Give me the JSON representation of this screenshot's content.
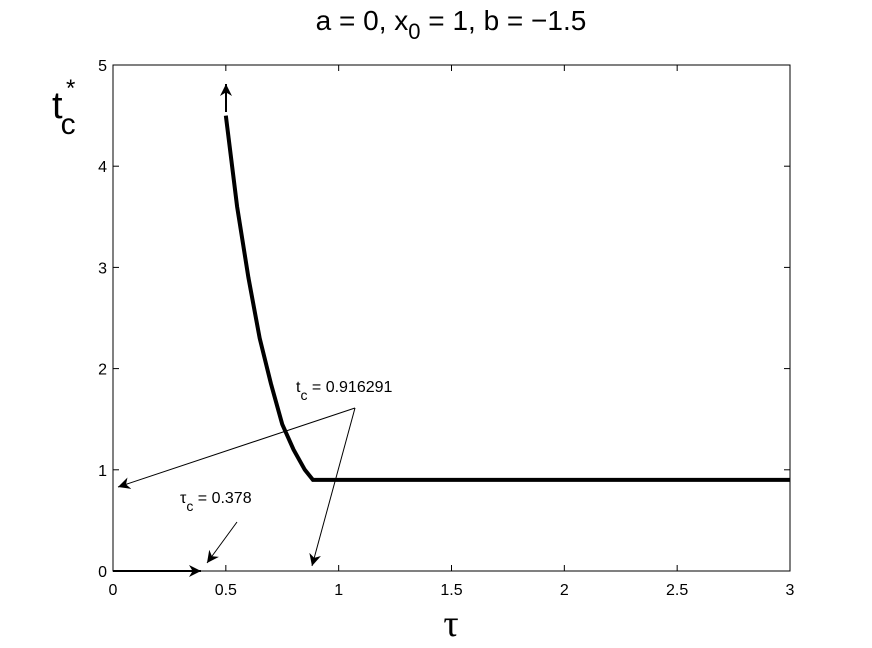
{
  "chart_data": {
    "type": "line",
    "title": {
      "parts": [
        "a = 0, x",
        "0",
        " = 1, b = −1.5"
      ]
    },
    "x_label": "τ",
    "y_label": {
      "base": "t",
      "subscript": "c",
      "superscript": "*"
    },
    "series": [
      {
        "color": "#000000",
        "x": [
          0.5,
          0.55,
          0.6,
          0.65,
          0.7,
          0.75,
          0.8,
          0.85,
          0.886,
          3
        ],
        "values": [
          4.5,
          3.6,
          2.9,
          2.3,
          1.85,
          1.45,
          1.2,
          1.0,
          0.9,
          0.9
        ]
      }
    ],
    "xlim": [
      0,
      3
    ],
    "xticks": [
      0,
      0.5,
      1,
      1.5,
      2,
      2.5,
      3
    ],
    "ylim": [
      0,
      5
    ],
    "yticks": [
      0,
      1,
      2,
      3,
      4,
      5
    ],
    "annotations": [
      {
        "parts": [
          "t",
          "c",
          " = 0.916291"
        ]
      },
      {
        "parts": [
          "τ",
          "c",
          " = 0.378"
        ]
      }
    ]
  }
}
